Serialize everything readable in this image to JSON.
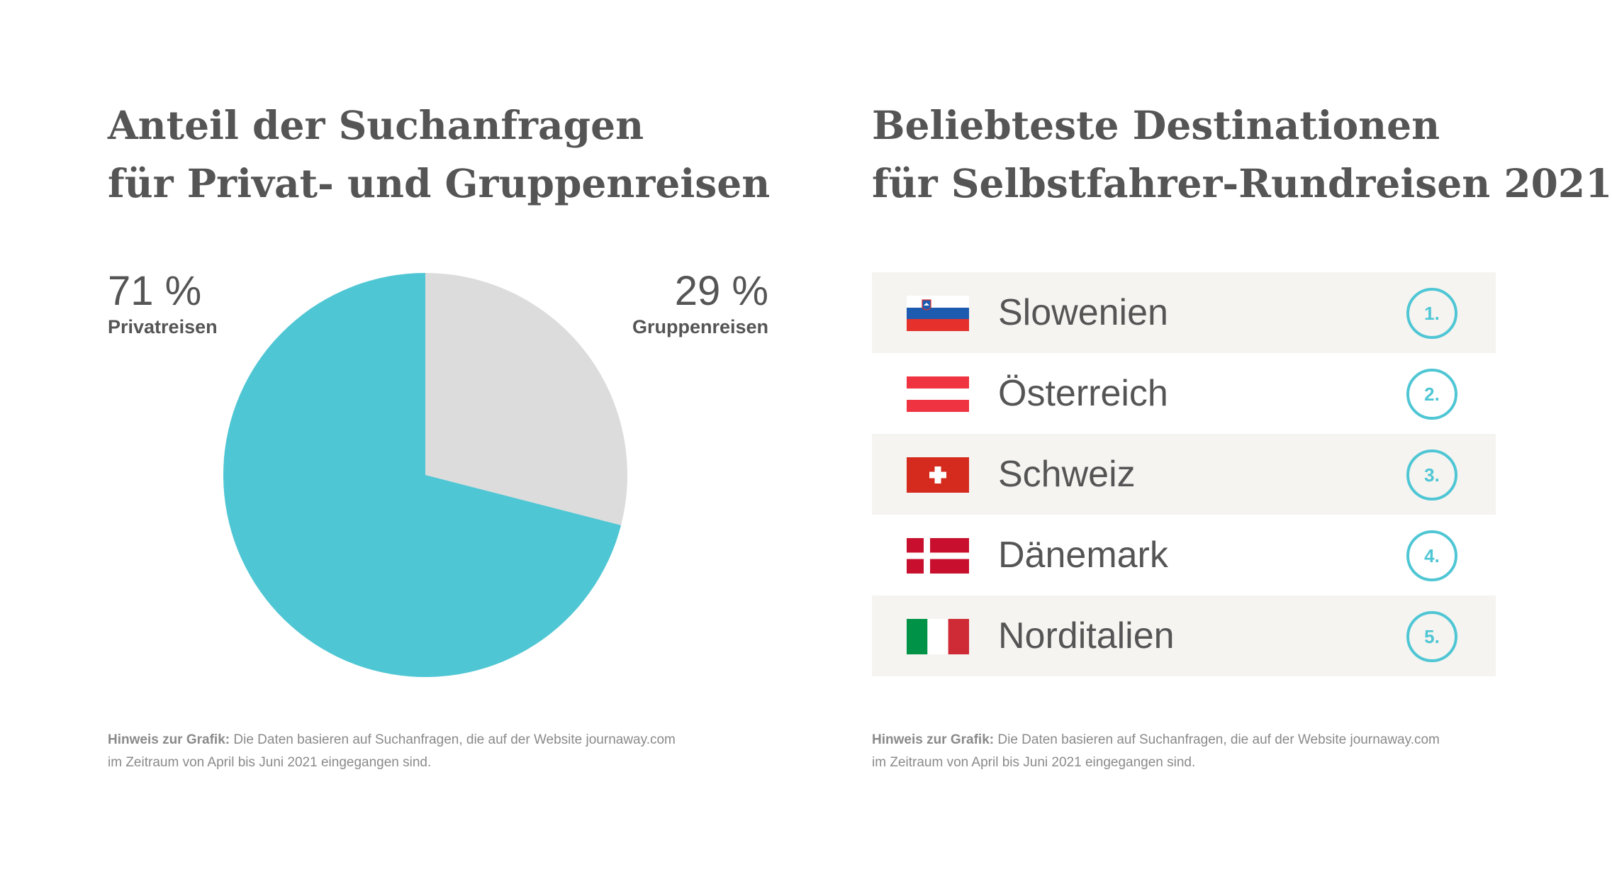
{
  "left": {
    "title_line1": "Anteil der Suchanfragen",
    "title_line2": "für Privat- und Gruppenreisen",
    "note_label": "Hinweis zur Grafik:",
    "note_text": " Die Daten basieren auf Suchanfragen, die auf der Website journaway.com",
    "note_text2": "im Zeitraum von April bis Juni 2021 eingegangen sind."
  },
  "right": {
    "title_line1": "Beliebteste Destinationen",
    "title_line2": "für Selbstfahrer-Rundreisen 2021",
    "note_label": "Hinweis zur Grafik:",
    "note_text": " Die Daten basieren auf Suchanfragen, die auf der Website journaway.com",
    "note_text2": "im Zeitraum von April bis Juni 2021 eingegangen sind.",
    "destinations": [
      {
        "name": "Slowenien",
        "rank": "1.",
        "flag": "slovenia-flag"
      },
      {
        "name": "Österreich",
        "rank": "2.",
        "flag": "austria-flag"
      },
      {
        "name": "Schweiz",
        "rank": "3.",
        "flag": "switzerland-flag"
      },
      {
        "name": "Dänemark",
        "rank": "4.",
        "flag": "denmark-flag"
      },
      {
        "name": "Norditalien",
        "rank": "5.",
        "flag": "italy-flag"
      }
    ]
  },
  "chart_data": {
    "type": "pie",
    "slices": [
      {
        "label": "Privatreisen",
        "value": 71,
        "display": "71 %",
        "color": "#4fc6d4"
      },
      {
        "label": "Gruppenreisen",
        "value": 29,
        "display": "29 %",
        "color": "#dcdcdc"
      }
    ]
  },
  "colors": {
    "accent": "#4fc6d4",
    "row_shade": "#f5f4f1",
    "text": "#555555"
  }
}
